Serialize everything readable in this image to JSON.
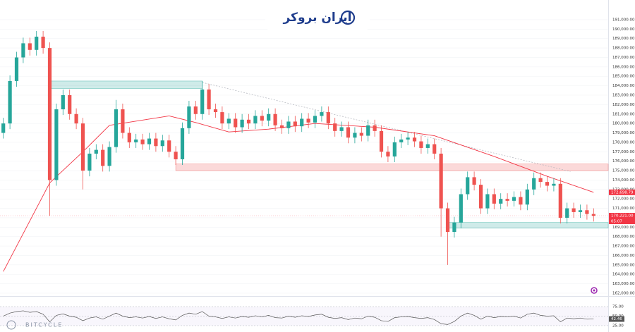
{
  "header": {
    "logo": "ایران بروکر"
  },
  "watermark": "BITCYCLE",
  "chart_data": [
    {
      "type": "candlestick",
      "xlim": [
        -0.5,
        91.2
      ],
      "ylim": [
        161700,
        193090
      ],
      "up_color": "#26a69a",
      "down_color": "#ef5350",
      "open": [
        179000,
        180000,
        184500,
        187000,
        188500,
        187800,
        189200,
        188000,
        174000,
        181500,
        183000,
        181000,
        180000,
        175000,
        176800,
        177200,
        175500,
        177500,
        181500,
        179000,
        178000,
        178300,
        177800,
        178400,
        177600,
        178200,
        177000,
        176200,
        179500,
        181800,
        181000,
        183600,
        181500,
        181200,
        180000,
        180500,
        179600,
        180400,
        180000,
        180800,
        180300,
        181000,
        179800,
        179500,
        180200,
        179700,
        180500,
        180100,
        180800,
        181200,
        180000,
        179200,
        179600,
        178500,
        179000,
        178700,
        179800,
        179200,
        177000,
        176500,
        178000,
        178300,
        178500,
        178100,
        177400,
        177800,
        176800,
        171000,
        168500,
        169500,
        172500,
        174300,
        173500,
        171000,
        172500,
        171500,
        172000,
        171800,
        172200,
        171400,
        173000,
        174200,
        173800,
        173400,
        173600,
        170000,
        171000,
        170600,
        170800,
        170400
      ],
      "high": [
        180600,
        185100,
        187600,
        189100,
        189100,
        189800,
        189800,
        188600,
        182100,
        183600,
        183600,
        181600,
        180600,
        177400,
        177800,
        177800,
        178100,
        182500,
        182100,
        179600,
        178900,
        178900,
        179000,
        179000,
        178800,
        178800,
        177600,
        180100,
        182400,
        182400,
        184500,
        184200,
        182100,
        181800,
        181100,
        181100,
        181000,
        181000,
        181400,
        181400,
        181600,
        181600,
        180400,
        180800,
        180800,
        181100,
        181100,
        181400,
        181800,
        181800,
        180600,
        180200,
        180200,
        179600,
        179600,
        180400,
        180400,
        179800,
        177600,
        178600,
        178900,
        179100,
        179100,
        178700,
        178400,
        178400,
        177400,
        171600,
        170100,
        173100,
        174900,
        174900,
        174100,
        173100,
        173100,
        172600,
        172600,
        172800,
        172800,
        173600,
        174800,
        174800,
        174400,
        174200,
        174200,
        171600,
        171600,
        171400,
        171400,
        171000
      ],
      "low": [
        178400,
        179400,
        183900,
        186400,
        187200,
        187200,
        187400,
        170200,
        173400,
        180900,
        180400,
        179400,
        173000,
        174400,
        176200,
        174900,
        174900,
        176900,
        178400,
        177400,
        177400,
        177200,
        177200,
        177000,
        177000,
        176400,
        175600,
        175600,
        178900,
        180400,
        180400,
        180900,
        180600,
        179400,
        179400,
        179000,
        179000,
        179400,
        179400,
        179700,
        179700,
        179200,
        178900,
        178900,
        179100,
        179100,
        179500,
        179500,
        180200,
        179400,
        178600,
        178600,
        177900,
        177900,
        178100,
        178100,
        178600,
        176400,
        175900,
        175900,
        177400,
        177700,
        177500,
        176800,
        176800,
        176200,
        168000,
        165000,
        167900,
        168900,
        171900,
        172900,
        170400,
        170400,
        170900,
        170900,
        171200,
        171200,
        170800,
        170800,
        172400,
        173200,
        172800,
        172800,
        169400,
        169400,
        170000,
        170000,
        169800,
        169600
      ],
      "close": [
        180000,
        184500,
        187000,
        188500,
        187800,
        189200,
        188000,
        174000,
        181500,
        183000,
        181000,
        180000,
        175000,
        176800,
        177200,
        175500,
        177500,
        181500,
        179000,
        178000,
        178300,
        177800,
        178400,
        177600,
        178200,
        177000,
        176200,
        179500,
        181800,
        181000,
        183600,
        181500,
        181200,
        180000,
        180500,
        179600,
        180400,
        180000,
        180800,
        180300,
        181000,
        179800,
        179500,
        180200,
        179700,
        180500,
        180100,
        180800,
        181200,
        180000,
        179200,
        179600,
        178500,
        179000,
        178700,
        179800,
        179200,
        177000,
        176500,
        178000,
        178300,
        178500,
        178100,
        177400,
        177800,
        176800,
        171000,
        168500,
        169500,
        172500,
        174300,
        173500,
        171000,
        172500,
        171500,
        172000,
        171800,
        172200,
        171400,
        173000,
        174200,
        173800,
        173400,
        173600,
        170000,
        171000,
        170600,
        170800,
        170400,
        170200
      ],
      "ma": {
        "color": "#f23645",
        "x": [
          0,
          7,
          12,
          16,
          25,
          29,
          34,
          40,
          47,
          56,
          65,
          74,
          82,
          89
        ],
        "values": [
          164300,
          173700,
          177000,
          179800,
          180800,
          180100,
          179100,
          179400,
          180000,
          179600,
          178700,
          176500,
          174400,
          172700
        ]
      },
      "zones": [
        {
          "x": [
            7,
            30
          ],
          "y": [
            183700,
            184500
          ],
          "color": "#26a69a"
        },
        {
          "x": [
            26,
            91.2
          ],
          "y": [
            175000,
            175700
          ],
          "color": "#ef5350"
        },
        {
          "x": [
            67,
            91.2
          ],
          "y": [
            168900,
            169500
          ],
          "color": "#26a69a"
        }
      ],
      "trendline": {
        "x": [
          30,
          85.5
        ],
        "y": [
          184350,
          174900
        ]
      },
      "price_labels": [
        {
          "value": 172698.79,
          "label": "172,698.79",
          "color": "#f23645"
        },
        {
          "value": 170221,
          "label": "170,221.00",
          "color": "#f23645"
        }
      ],
      "countdown": "05:07",
      "yticks": [
        {
          "value": 162000,
          "label": "162,000.00"
        },
        {
          "value": 163000,
          "label": "163,000.00"
        },
        {
          "value": 164000,
          "label": "164,000.00"
        },
        {
          "value": 165000,
          "label": "165,000.00"
        },
        {
          "value": 166000,
          "label": "166,000.00"
        },
        {
          "value": 167000,
          "label": "167,000.00"
        },
        {
          "value": 168000,
          "label": "168,000.00"
        },
        {
          "value": 169000,
          "label": "169,000.00"
        },
        {
          "value": 170000,
          "label": "170,000.00"
        },
        {
          "value": 171000,
          "label": "171,000.00"
        },
        {
          "value": 172000,
          "label": "172,000.00"
        },
        {
          "value": 173000,
          "label": "173,000.00"
        },
        {
          "value": 174000,
          "label": "174,000.00"
        },
        {
          "value": 175000,
          "label": "175,000.00"
        },
        {
          "value": 176000,
          "label": "176,000.00"
        },
        {
          "value": 177000,
          "label": "177,000.00"
        },
        {
          "value": 178000,
          "label": "178,000.00"
        },
        {
          "value": 179000,
          "label": "179,000.00"
        },
        {
          "value": 180000,
          "label": "180,000.00"
        },
        {
          "value": 181000,
          "label": "181,000.00"
        },
        {
          "value": 182000,
          "label": "182,000.00"
        },
        {
          "value": 183000,
          "label": "183,000.00"
        },
        {
          "value": 184000,
          "label": "184,000.00"
        },
        {
          "value": 185000,
          "label": "185,000.00"
        },
        {
          "value": 186000,
          "label": "186,000.00"
        },
        {
          "value": 187000,
          "label": "187,000.00"
        },
        {
          "value": 188000,
          "label": "188,000.00"
        },
        {
          "value": 189000,
          "label": "189,000.00"
        },
        {
          "value": 190000,
          "label": "190,000.00"
        },
        {
          "value": 191000,
          "label": "191,000.00"
        }
      ],
      "grid": true
    },
    {
      "type": "line",
      "xlim": [
        -0.5,
        91.2
      ],
      "ylim": [
        8.3,
        100.9
      ],
      "color": "#555555",
      "band_color": "#7e57c2",
      "values": [
        50,
        58,
        62,
        64,
        60,
        62,
        55,
        35,
        52,
        56,
        50,
        47,
        38,
        45,
        48,
        42,
        50,
        58,
        50,
        46,
        48,
        45,
        49,
        44,
        48,
        43,
        40,
        52,
        58,
        55,
        62,
        50,
        48,
        44,
        48,
        45,
        49,
        47,
        51,
        48,
        52,
        46,
        45,
        50,
        47,
        51,
        49,
        53,
        55,
        47,
        44,
        46,
        41,
        45,
        43,
        50,
        47,
        38,
        36,
        46,
        48,
        49,
        46,
        44,
        46,
        41,
        30,
        28,
        36,
        50,
        58,
        52,
        42,
        50,
        46,
        49,
        48,
        50,
        45,
        55,
        58,
        52,
        50,
        51,
        35,
        45,
        43,
        45,
        42,
        42.46
      ],
      "value_label": {
        "value": 42.46,
        "label": "42.46"
      },
      "yticks": [
        {
          "value": 25,
          "label": "25.00"
        },
        {
          "value": 50,
          "label": "50.00"
        },
        {
          "value": 75,
          "label": "75.00"
        }
      ]
    }
  ]
}
